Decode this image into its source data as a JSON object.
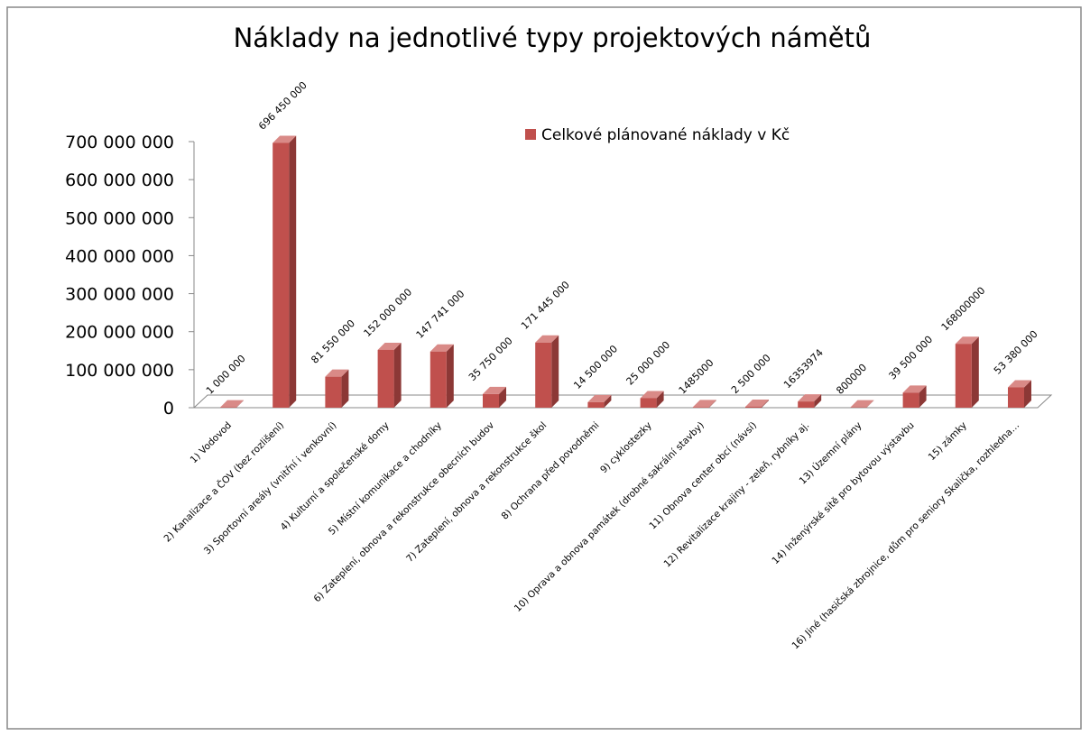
{
  "chart_data": {
    "type": "bar",
    "title": "Náklady na jednotlivé typy projektových námětů",
    "categories": [
      "1)   Vodovod",
      "2)   Kanalizace a ČOV (bez rozlišení)",
      "3)   Sportovní areály (vnitřní i venkovní)",
      "4)   Kulturní a společenské domy",
      "5)   Místní komunikace a chodníky",
      "6)   Zateplení, obnova a rekonstrukce obecních budov",
      "7)   Zateplení, obnova a rekonstrukce škol",
      "8)   Ochrana před povodněmi",
      "9)   cyklostezky",
      "10) Oprava a obnova památek (drobné sakrální stavby)",
      "11) Obnova center obcí (návsí)",
      "12) Revitalizace krajiny - zeleň, rybníky aj.",
      "13) Územní plány",
      "14) Inženýrské sítě pro bytovou výstavbu",
      "15) zámky",
      "16) Jiné (hasičská zbrojnice, dům pro seniory Skalička, rozhledna…"
    ],
    "series": [
      {
        "name": "Celkové plánované náklady v Kč",
        "color": "#c0504d",
        "values": [
          1000000,
          696450000,
          81550000,
          152000000,
          147741000,
          35750000,
          171445000,
          14500000,
          25000000,
          1485000,
          2500000,
          16353974,
          800000,
          39500000,
          168000000,
          53380000
        ],
        "value_labels": [
          "1 000 000",
          "696 450 000",
          "81 550 000",
          "152 000 000",
          "147 741 000",
          "35 750 000",
          "171 445 000",
          "14 500 000",
          "25 000 000",
          "1485000",
          "2 500 000",
          "16353974",
          "800000",
          "39 500 000",
          "168000000",
          "53 380 000"
        ]
      }
    ],
    "ylim": [
      0,
      700000000
    ],
    "yticks": [
      0,
      {
        "value": 100000000,
        "label": "100 000 000"
      },
      {
        "value": 200000000,
        "label": "200 000 000"
      },
      {
        "value": 300000000,
        "label": "300 000 000"
      },
      {
        "value": 400000000,
        "label": "400 000 000"
      },
      {
        "value": 500000000,
        "label": "500 000 000"
      },
      {
        "value": 600000000,
        "label": "600 000 000"
      },
      {
        "value": 700000000,
        "label": "700 000 000"
      }
    ],
    "legend": "top-right"
  }
}
